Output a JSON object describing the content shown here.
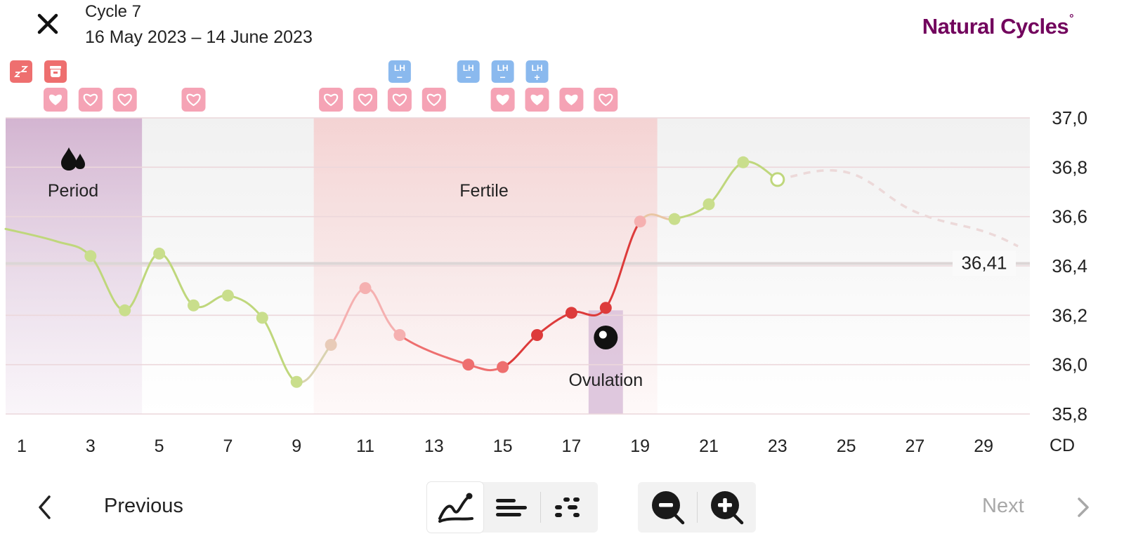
{
  "header": {
    "title": "Cycle 7",
    "subtitle": "16 May 2023 – 14 June 2023",
    "brand": "Natural Cycles",
    "brand_mark": "°",
    "close_icon": "close-icon",
    "brand_color": "#72035d"
  },
  "chart_data": {
    "type": "line",
    "xlabel": "CD",
    "ylabel": "",
    "x_ticks": [
      1,
      3,
      5,
      7,
      9,
      11,
      13,
      15,
      17,
      19,
      21,
      23,
      25,
      27,
      29
    ],
    "y_ticks": [
      "37,0",
      "36,8",
      "36,6",
      "36,4",
      "36,2",
      "36,0",
      "35,8"
    ],
    "xlim": [
      1,
      30
    ],
    "ylim": [
      35.8,
      37.0
    ],
    "grid": true,
    "cover_line": {
      "value": 36.41,
      "label": "36,41"
    },
    "phases": [
      {
        "name": "Period",
        "start_day": 1,
        "end_day": 4,
        "icon": "blood-drops-icon",
        "color": "#c9a6c9"
      },
      {
        "name": "Fertile",
        "start_day": 10,
        "end_day": 19,
        "color": "#f9c9c9"
      },
      {
        "name": "Ovulation",
        "day": 18,
        "icon": "ovulation-icon",
        "color": "#d8bcd8"
      }
    ],
    "series": [
      {
        "values": [
          {
            "day": 3,
            "temp": 36.44,
            "status": "green"
          },
          {
            "day": 4,
            "temp": 36.22,
            "status": "green"
          },
          {
            "day": 5,
            "temp": 36.45,
            "status": "green"
          },
          {
            "day": 6,
            "temp": 36.24,
            "status": "green"
          },
          {
            "day": 7,
            "temp": 36.28,
            "status": "green"
          },
          {
            "day": 8,
            "temp": 36.19,
            "status": "green"
          },
          {
            "day": 9,
            "temp": 35.93,
            "status": "green"
          },
          {
            "day": 10,
            "temp": 36.08,
            "status": "red-light"
          },
          {
            "day": 11,
            "temp": 36.31,
            "status": "red-light"
          },
          {
            "day": 12,
            "temp": 36.12,
            "status": "red-light"
          },
          {
            "day": 14,
            "temp": 36.0,
            "status": "red"
          },
          {
            "day": 15,
            "temp": 35.99,
            "status": "red"
          },
          {
            "day": 16,
            "temp": 36.12,
            "status": "red-dark"
          },
          {
            "day": 17,
            "temp": 36.21,
            "status": "red-dark"
          },
          {
            "day": 18,
            "temp": 36.23,
            "status": "red-dark"
          },
          {
            "day": 19,
            "temp": 36.58,
            "status": "red-light"
          },
          {
            "day": 20,
            "temp": 36.59,
            "status": "green"
          },
          {
            "day": 21,
            "temp": 36.65,
            "status": "green"
          },
          {
            "day": 22,
            "temp": 36.82,
            "status": "green"
          },
          {
            "day": 23,
            "temp": 36.75,
            "status": "green-open"
          }
        ],
        "lead_in": [
          36.55,
          36.5
        ],
        "prediction": [
          {
            "day": 23,
            "temp": 36.75
          },
          {
            "day": 25,
            "temp": 36.78
          },
          {
            "day": 27,
            "temp": 36.62
          },
          {
            "day": 29,
            "temp": 36.54
          },
          {
            "day": 30,
            "temp": 36.48
          }
        ]
      }
    ],
    "colors": {
      "green": "#c9de8c",
      "green_line": "#bfd77c",
      "red_light": "#f5b0b0",
      "red": "#ee6f6f",
      "red_dark": "#dd3b3b",
      "neutral_point": "#e8cbb8",
      "grid": "#ecd7db",
      "cover": "#dcd6d6",
      "prediction": "#ecd9d9"
    },
    "markers": [
      {
        "day": 1,
        "row": 1,
        "kind": "sleep-icon",
        "color": "#ee6f6f"
      },
      {
        "day": 2,
        "row": 1,
        "kind": "pregnancy-test-icon",
        "color": "#ee6f6f"
      },
      {
        "day": 2,
        "row": 2,
        "kind": "heart-filled-icon",
        "color": "#f5a3b5"
      },
      {
        "day": 3,
        "row": 2,
        "kind": "heart-outline-icon",
        "color": "#f5a3b5"
      },
      {
        "day": 4,
        "row": 2,
        "kind": "heart-outline-icon",
        "color": "#f5a3b5"
      },
      {
        "day": 6,
        "row": 2,
        "kind": "heart-outline-icon",
        "color": "#f5a3b5"
      },
      {
        "day": 10,
        "row": 2,
        "kind": "heart-outline-icon",
        "color": "#f5a3b5"
      },
      {
        "day": 11,
        "row": 2,
        "kind": "heart-outline-icon",
        "color": "#f5a3b5"
      },
      {
        "day": 12,
        "row": 1,
        "kind": "lh-negative-icon",
        "color": "#8ab9ee",
        "sign": "−"
      },
      {
        "day": 12,
        "row": 2,
        "kind": "heart-outline-icon",
        "color": "#f5a3b5"
      },
      {
        "day": 13,
        "row": 2,
        "kind": "heart-outline-icon",
        "color": "#f5a3b5"
      },
      {
        "day": 14,
        "row": 1,
        "kind": "lh-negative-icon",
        "color": "#8ab9ee",
        "sign": "−"
      },
      {
        "day": 15,
        "row": 1,
        "kind": "lh-negative-icon",
        "color": "#8ab9ee",
        "sign": "−"
      },
      {
        "day": 15,
        "row": 2,
        "kind": "heart-filled-icon",
        "color": "#f5a3b5"
      },
      {
        "day": 16,
        "row": 1,
        "kind": "lh-positive-icon",
        "color": "#8ab9ee",
        "sign": "+"
      },
      {
        "day": 16,
        "row": 2,
        "kind": "heart-filled-icon",
        "color": "#f5a3b5"
      },
      {
        "day": 17,
        "row": 2,
        "kind": "heart-filled-icon",
        "color": "#f5a3b5"
      },
      {
        "day": 18,
        "row": 2,
        "kind": "heart-outline-icon",
        "color": "#f5a3b5"
      }
    ],
    "lh_label": "LH"
  },
  "footer": {
    "previous_label": "Previous",
    "next_label": "Next",
    "view_buttons": [
      {
        "icon": "line-chart-icon",
        "active": true
      },
      {
        "icon": "bar-list-icon",
        "active": false
      },
      {
        "icon": "dot-grid-icon",
        "active": false
      }
    ],
    "zoom_out_icon": "zoom-out-icon",
    "zoom_in_icon": "zoom-in-icon",
    "previous_icon": "chevron-left-icon",
    "next_icon": "chevron-right-icon"
  }
}
